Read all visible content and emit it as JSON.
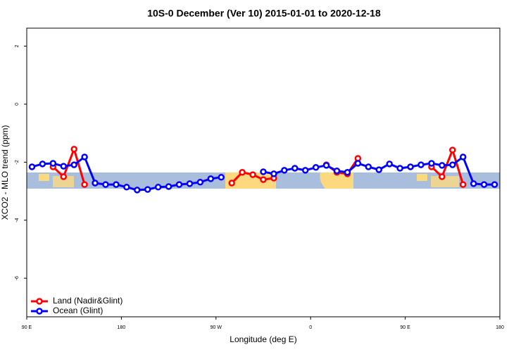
{
  "chart_data": {
    "type": "line",
    "title": "10S-0 December (Ver 10)   2015-01-01 to 2020-12-18",
    "xlabel": "Longitude (deg E)",
    "ylabel": "XCO2 - MLO trend (ppm)",
    "xlim": [
      90,
      540
    ],
    "ylim": [
      -7.33,
      2.62
    ],
    "xticks": [
      {
        "value": 90,
        "label": "90 E"
      },
      {
        "value": 180,
        "label": "180"
      },
      {
        "value": 270,
        "label": "90 W"
      },
      {
        "value": 360,
        "label": "0"
      },
      {
        "value": 450,
        "label": "90 E"
      },
      {
        "value": 540,
        "label": "180"
      }
    ],
    "yticks": [
      2,
      0,
      -2,
      -4,
      -6
    ],
    "legend": "bottomleft",
    "series": [
      {
        "name": "Land (Nadir&Glint)",
        "color": "#ff0000",
        "x": [
          115,
          125,
          135,
          145,
          155,
          285,
          295,
          305,
          315,
          325,
          365,
          375,
          385,
          395,
          405,
          465,
          475,
          485,
          495,
          505
        ],
        "values": [
          -2.16,
          -2.5,
          -1.55,
          -2.77,
          null,
          -2.72,
          -2.35,
          -2.43,
          -2.6,
          -2.55,
          null,
          -2.09,
          -2.35,
          -2.4,
          -1.87,
          null,
          -2.16,
          -2.5,
          -1.58,
          -2.77
        ]
      },
      {
        "name": "Ocean (Glint)",
        "color": "#0000ff",
        "x": [
          95,
          105,
          115,
          125,
          135,
          145,
          155,
          165,
          175,
          185,
          195,
          205,
          215,
          225,
          235,
          245,
          255,
          265,
          275,
          285,
          295,
          305,
          315,
          325,
          335,
          345,
          355,
          365,
          375,
          385,
          395,
          405,
          415,
          425,
          435,
          445,
          455,
          465,
          475,
          485,
          495,
          505,
          515,
          525,
          535
        ],
        "values": [
          -2.16,
          -2.06,
          -2.04,
          -2.14,
          -2.09,
          -1.82,
          -2.72,
          -2.77,
          -2.77,
          -2.86,
          -2.96,
          -2.94,
          -2.86,
          -2.84,
          -2.77,
          -2.74,
          -2.69,
          -2.57,
          -2.52,
          null,
          null,
          null,
          -2.33,
          -2.4,
          -2.28,
          -2.21,
          -2.28,
          -2.18,
          -2.11,
          -2.3,
          -2.35,
          -2.04,
          -2.16,
          -2.26,
          -2.06,
          -2.21,
          -2.16,
          -2.09,
          -2.04,
          -2.11,
          -2.09,
          -1.82,
          -2.74,
          -2.77,
          -2.77
        ]
      }
    ]
  }
}
